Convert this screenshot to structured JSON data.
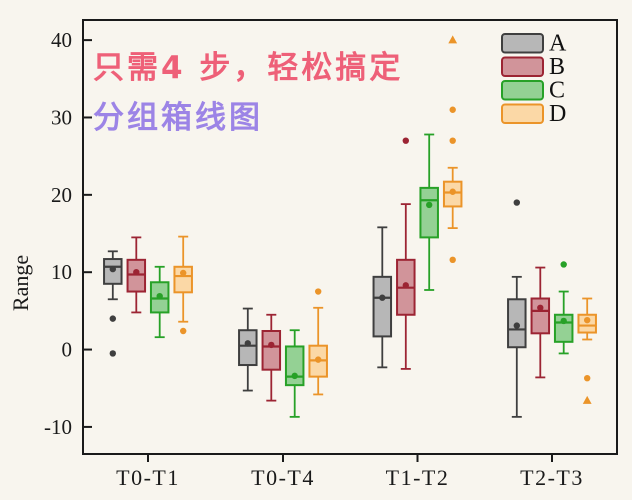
{
  "page": {
    "background": "#f8f5ee",
    "axis_color": "#1a1a1a"
  },
  "annotations": {
    "line1": {
      "text": "只需4 步，轻松搞定",
      "color": "#ee6078"
    },
    "line2": {
      "text": "分组箱线图",
      "color": "#9c84e6"
    }
  },
  "chart_data": {
    "type": "boxplot",
    "title": "",
    "xlabel": "",
    "ylabel": "Range",
    "categories": [
      "T0-T1",
      "T0-T4",
      "T1-T2",
      "T2-T3"
    ],
    "y_ticks": [
      -10,
      0,
      10,
      20,
      30,
      40
    ],
    "ylim": [
      -13.5,
      42.6
    ],
    "grid": false,
    "legend_position": "top-right-inside",
    "series": [
      {
        "name": "A",
        "fill": "#b7b7b7",
        "stroke": "#3f3f3f",
        "boxes": [
          {
            "category": "T0-T1",
            "whisker_low": 6.5,
            "q1": 8.5,
            "median": 10.7,
            "q3": 11.7,
            "whisker_high": 12.7,
            "mean": 10.4,
            "outliers": [
              {
                "value": 4.0,
                "marker": "circle"
              },
              {
                "value": -0.5,
                "marker": "circle"
              }
            ]
          },
          {
            "category": "T0-T4",
            "whisker_low": -5.3,
            "q1": -2.0,
            "median": 0.5,
            "q3": 2.5,
            "whisker_high": 5.3,
            "mean": 0.8,
            "outliers": []
          },
          {
            "category": "T1-T2",
            "whisker_low": -2.3,
            "q1": 1.7,
            "median": 6.7,
            "q3": 9.4,
            "whisker_high": 15.8,
            "mean": 6.7,
            "outliers": []
          },
          {
            "category": "T2-T3",
            "whisker_low": -8.7,
            "q1": 0.3,
            "median": 2.6,
            "q3": 6.5,
            "whisker_high": 9.4,
            "mean": 3.1,
            "outliers": [
              {
                "value": 19.0,
                "marker": "circle"
              }
            ]
          }
        ]
      },
      {
        "name": "B",
        "fill": "#d1949a",
        "stroke": "#9c2433",
        "boxes": [
          {
            "category": "T0-T1",
            "whisker_low": 4.8,
            "q1": 7.5,
            "median": 9.7,
            "q3": 11.6,
            "whisker_high": 14.5,
            "mean": 10.0,
            "outliers": []
          },
          {
            "category": "T0-T4",
            "whisker_low": -6.6,
            "q1": -2.6,
            "median": 0.4,
            "q3": 2.4,
            "whisker_high": 4.5,
            "mean": 0.6,
            "outliers": []
          },
          {
            "category": "T1-T2",
            "whisker_low": -2.5,
            "q1": 4.5,
            "median": 8.0,
            "q3": 11.6,
            "whisker_high": 18.8,
            "mean": 8.3,
            "outliers": [
              {
                "value": 27.0,
                "marker": "circle"
              }
            ]
          },
          {
            "category": "T2-T3",
            "whisker_low": -3.6,
            "q1": 2.1,
            "median": 5.0,
            "q3": 6.6,
            "whisker_high": 10.6,
            "mean": 5.4,
            "outliers": []
          }
        ]
      },
      {
        "name": "C",
        "fill": "#94d194",
        "stroke": "#27a127",
        "boxes": [
          {
            "category": "T0-T1",
            "whisker_low": 1.6,
            "q1": 4.8,
            "median": 6.6,
            "q3": 8.7,
            "whisker_high": 10.7,
            "mean": 6.9,
            "outliers": []
          },
          {
            "category": "T0-T4",
            "whisker_low": -8.7,
            "q1": -4.6,
            "median": -3.5,
            "q3": 0.4,
            "whisker_high": 2.5,
            "mean": -3.4,
            "outliers": []
          },
          {
            "category": "T1-T2",
            "whisker_low": 7.7,
            "q1": 14.5,
            "median": 19.3,
            "q3": 20.9,
            "whisker_high": 27.8,
            "mean": 18.7,
            "outliers": []
          },
          {
            "category": "T2-T3",
            "whisker_low": -0.5,
            "q1": 1.0,
            "median": 3.5,
            "q3": 4.5,
            "whisker_high": 7.5,
            "mean": 3.7,
            "outliers": [
              {
                "value": 11.0,
                "marker": "circle"
              }
            ]
          }
        ]
      },
      {
        "name": "D",
        "fill": "#fbd8a6",
        "stroke": "#eb9429",
        "boxes": [
          {
            "category": "T0-T1",
            "whisker_low": 3.6,
            "q1": 7.4,
            "median": 9.5,
            "q3": 10.7,
            "whisker_high": 14.6,
            "mean": 9.9,
            "outliers": [
              {
                "value": 2.4,
                "marker": "circle"
              }
            ]
          },
          {
            "category": "T0-T4",
            "whisker_low": -5.8,
            "q1": -3.5,
            "median": -1.4,
            "q3": 0.5,
            "whisker_high": 5.4,
            "mean": -1.3,
            "outliers": [
              {
                "value": 7.5,
                "marker": "circle"
              }
            ]
          },
          {
            "category": "T1-T2",
            "whisker_low": 15.7,
            "q1": 18.5,
            "median": 20.3,
            "q3": 21.7,
            "whisker_high": 23.5,
            "mean": 20.4,
            "outliers": [
              {
                "value": 40.0,
                "marker": "triangle"
              },
              {
                "value": 31.0,
                "marker": "circle"
              },
              {
                "value": 27.0,
                "marker": "circle"
              },
              {
                "value": 11.6,
                "marker": "circle"
              }
            ]
          },
          {
            "category": "T2-T3",
            "whisker_low": 1.3,
            "q1": 2.2,
            "median": 3.1,
            "q3": 4.5,
            "whisker_high": 6.6,
            "mean": 3.8,
            "outliers": [
              {
                "value": -3.7,
                "marker": "circle"
              },
              {
                "value": -6.6,
                "marker": "triangle"
              }
            ]
          }
        ]
      }
    ]
  }
}
